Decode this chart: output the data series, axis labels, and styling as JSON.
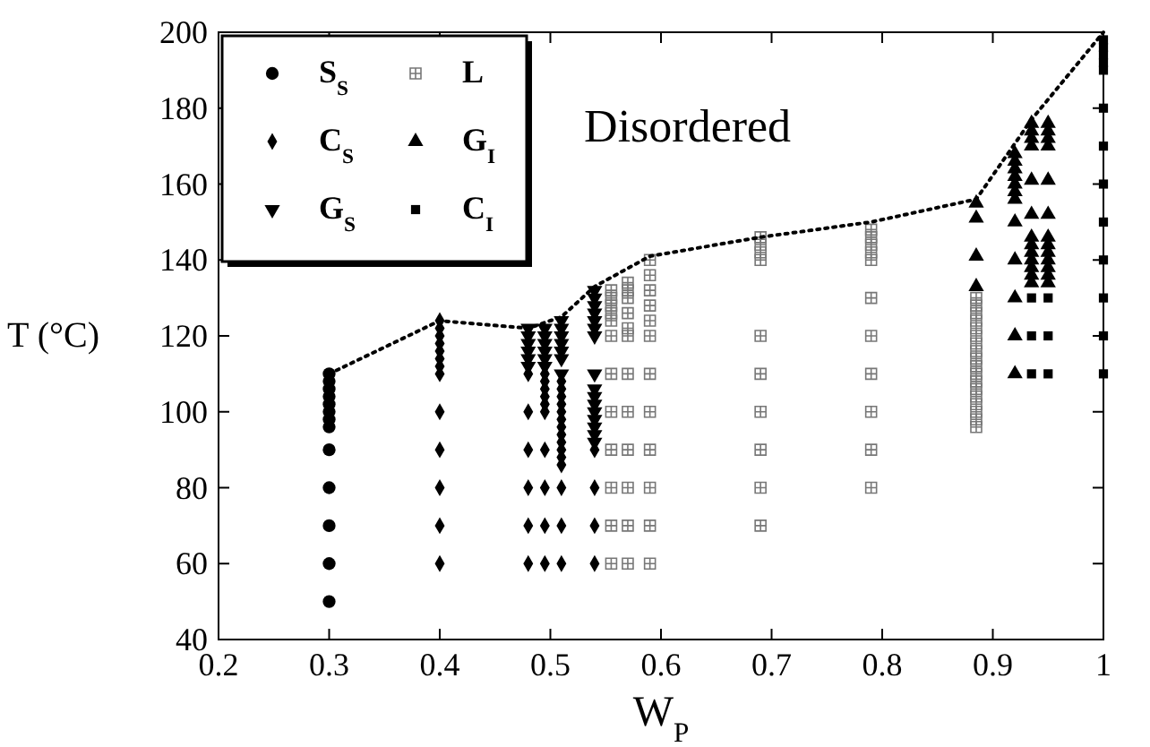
{
  "chart_data": {
    "type": "scatter",
    "xlabel": "W$_{P}$",
    "ylabel": "T (°C)",
    "xlim": [
      0.2,
      1.0
    ],
    "ylim": [
      40,
      200
    ],
    "xticks": [
      0.2,
      0.3,
      0.4,
      0.5,
      0.6,
      0.7,
      0.8,
      0.9,
      1
    ],
    "yticks": [
      40,
      60,
      80,
      100,
      120,
      140,
      160,
      180,
      200
    ],
    "grid": false,
    "legend": "top left",
    "annotations": [
      "Disordered"
    ],
    "series": [
      {
        "name": "S$_{S}$",
        "color": "#000000",
        "marker": "circle",
        "x": [
          0.3,
          0.3,
          0.3,
          0.3,
          0.3,
          0.3,
          0.3,
          0.3,
          0.3,
          0.3,
          0.3,
          0.3,
          0.3
        ],
        "values": [
          50,
          60,
          70,
          80,
          90,
          96,
          98,
          100,
          102,
          104,
          106,
          108,
          110
        ]
      },
      {
        "name": "C$_{S}$",
        "color": "#000000",
        "marker": "diamond",
        "x": [
          0.4,
          0.4,
          0.4,
          0.4,
          0.4,
          0.4,
          0.4,
          0.4,
          0.4,
          0.4,
          0.4,
          0.4,
          0.4,
          0.48,
          0.48,
          0.48,
          0.48,
          0.48,
          0.48,
          0.495,
          0.495,
          0.495,
          0.495,
          0.495,
          0.495,
          0.495,
          0.495,
          0.495,
          0.495,
          0.51,
          0.51,
          0.51,
          0.51,
          0.51,
          0.51,
          0.51,
          0.51,
          0.51,
          0.51,
          0.51,
          0.51,
          0.51,
          0.51,
          0.51,
          0.54,
          0.54,
          0.54,
          0.54
        ],
        "values": [
          60,
          70,
          80,
          90,
          100,
          110,
          112,
          114,
          116,
          118,
          120,
          122,
          124,
          60,
          70,
          80,
          90,
          100,
          110,
          60,
          70,
          80,
          90,
          100,
          102,
          104,
          106,
          108,
          110,
          60,
          70,
          80,
          86,
          88,
          90,
          92,
          94,
          96,
          98,
          100,
          102,
          104,
          106,
          108,
          60,
          70,
          80,
          90
        ]
      },
      {
        "name": "G$_{S}$",
        "color": "#000000",
        "marker": "triangle-down",
        "x": [
          0.48,
          0.48,
          0.48,
          0.48,
          0.48,
          0.48,
          0.495,
          0.495,
          0.495,
          0.495,
          0.495,
          0.495,
          0.51,
          0.51,
          0.51,
          0.51,
          0.51,
          0.51,
          0.51,
          0.54,
          0.54,
          0.54,
          0.54,
          0.54,
          0.54,
          0.54,
          0.54,
          0.54,
          0.54,
          0.54,
          0.54,
          0.54,
          0.54,
          0.54,
          0.54
        ],
        "values": [
          112,
          114,
          116,
          118,
          120,
          122,
          112,
          114,
          116,
          118,
          120,
          122,
          110,
          114,
          116,
          118,
          120,
          122,
          124,
          92,
          94,
          96,
          98,
          100,
          102,
          104,
          106,
          110,
          120,
          122,
          124,
          126,
          128,
          130,
          132
        ]
      },
      {
        "name": "L",
        "color": "#777777",
        "marker": "cross",
        "x": [
          0.555,
          0.555,
          0.555,
          0.555,
          0.555,
          0.555,
          0.555,
          0.555,
          0.555,
          0.555,
          0.555,
          0.555,
          0.57,
          0.57,
          0.57,
          0.57,
          0.57,
          0.57,
          0.57,
          0.57,
          0.57,
          0.57,
          0.57,
          0.57,
          0.59,
          0.59,
          0.59,
          0.59,
          0.59,
          0.59,
          0.59,
          0.59,
          0.59,
          0.59,
          0.59,
          0.59,
          0.69,
          0.69,
          0.69,
          0.69,
          0.69,
          0.69,
          0.69,
          0.69,
          0.69,
          0.69,
          0.79,
          0.79,
          0.79,
          0.79,
          0.79,
          0.79,
          0.79,
          0.79,
          0.79,
          0.79,
          0.79,
          0.885,
          0.885,
          0.885,
          0.885,
          0.885,
          0.885,
          0.885,
          0.885,
          0.885,
          0.885,
          0.885,
          0.885,
          0.885,
          0.885,
          0.885,
          0.885,
          0.885,
          0.885
        ],
        "values": [
          60,
          70,
          80,
          90,
          100,
          110,
          120,
          124,
          126,
          128,
          130,
          132,
          60,
          70,
          80,
          90,
          100,
          110,
          120,
          122,
          126,
          130,
          132,
          134,
          60,
          70,
          80,
          90,
          100,
          110,
          120,
          124,
          128,
          132,
          136,
          140,
          70,
          80,
          90,
          100,
          110,
          120,
          140,
          142,
          144,
          146,
          80,
          90,
          100,
          110,
          120,
          130,
          140,
          142,
          144,
          146,
          148,
          96,
          98,
          100,
          102,
          104,
          106,
          108,
          110,
          112,
          114,
          116,
          118,
          120,
          122,
          124,
          126,
          128,
          130
        ]
      },
      {
        "name": "G$_{I}$",
        "color": "#000000",
        "marker": "triangle",
        "x": [
          0.885,
          0.885,
          0.885,
          0.885,
          0.92,
          0.92,
          0.92,
          0.92,
          0.92,
          0.92,
          0.92,
          0.92,
          0.92,
          0.92,
          0.92,
          0.92,
          0.935,
          0.935,
          0.935,
          0.935,
          0.935,
          0.935,
          0.935,
          0.935,
          0.935,
          0.935,
          0.935,
          0.935,
          0.935,
          0.95,
          0.95,
          0.95,
          0.95,
          0.95,
          0.95,
          0.95,
          0.95,
          0.95,
          0.95,
          0.95,
          0.95,
          0.95
        ],
        "values": [
          133,
          141,
          151,
          155,
          110,
          120,
          130,
          140,
          150,
          156,
          158,
          160,
          162,
          164,
          166,
          168,
          134,
          136,
          138,
          140,
          142,
          144,
          146,
          152,
          161,
          170,
          172,
          174,
          176,
          134,
          136,
          138,
          140,
          142,
          144,
          146,
          152,
          161,
          170,
          172,
          174,
          176
        ]
      },
      {
        "name": "C$_{I}$",
        "color": "#000000",
        "marker": "square",
        "x": [
          0.935,
          0.935,
          0.935,
          0.95,
          0.95,
          0.95,
          1,
          1,
          1,
          1,
          1,
          1,
          1,
          1,
          1,
          1,
          1,
          1,
          1
        ],
        "values": [
          110,
          120,
          130,
          110,
          120,
          130,
          110,
          120,
          130,
          140,
          150,
          160,
          170,
          180,
          190,
          192,
          194,
          196,
          198
        ]
      },
      {
        "type": "line",
        "color": "#000000",
        "line_style": "dotted",
        "marker": "none",
        "x": [
          0.3,
          0.4,
          0.48,
          0.51,
          0.54,
          0.59,
          0.69,
          0.79,
          0.885,
          0.935,
          1
        ],
        "values": [
          110,
          124,
          122,
          125,
          133,
          141,
          146,
          150,
          156,
          177,
          200
        ]
      }
    ]
  }
}
